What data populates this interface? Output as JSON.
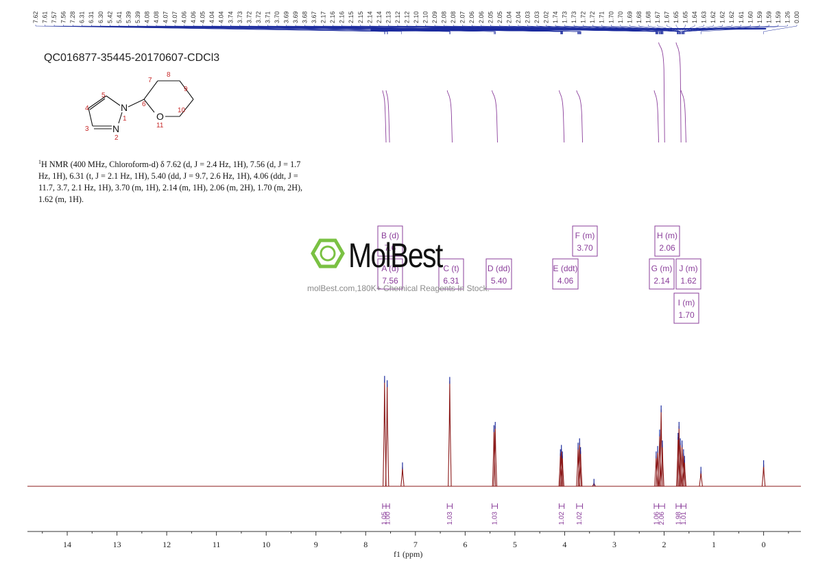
{
  "sample_id": "QC016877-35445-20170607-CDCl3",
  "description": {
    "nucleus_sup": "1",
    "text": "H NMR (400 MHz, Chloroform-d) δ 7.62 (d, J = 2.4 Hz, 1H), 7.56 (d, J = 1.7 Hz, 1H), 6.31 (t, J = 2.1 Hz, 1H), 5.40 (dd, J = 9.7, 2.6 Hz, 1H), 4.06 (ddt, J = 11.7, 3.7, 2.1 Hz, 1H), 3.70 (m, 1H), 2.14 (m, 1H), 2.06 (m, 2H), 1.70 (m, 2H), 1.62 (m, 1H)."
  },
  "structure": {
    "atom_labels": [
      "N",
      "N",
      "O"
    ],
    "numbers": [
      "1",
      "2",
      "3",
      "4",
      "5",
      "6",
      "7",
      "8",
      "9",
      "10",
      "11"
    ]
  },
  "watermark": {
    "brand": "MolBest",
    "tagline": "molBest.com,180K+ Chemical Reagents In Stock."
  },
  "colors": {
    "spectrum": "#8b1a1a",
    "peak_top": "#1c2c9e",
    "annotation": "#8a3d9a",
    "axis": "#333333",
    "brand_green": "#7ac143"
  },
  "chart_data": {
    "type": "line",
    "xlabel": "f1 (ppm)",
    "xlim": [
      14.8,
      -0.75
    ],
    "x_reversed": true,
    "x_ticks": [
      "14",
      "13",
      "12",
      "11",
      "10",
      "9",
      "8",
      "7",
      "6",
      "5",
      "4",
      "3",
      "2",
      "1",
      "0"
    ],
    "peak_list": [
      "7.62",
      "7.61",
      "7.57",
      "7.56",
      "7.28",
      "6.31",
      "6.31",
      "6.30",
      "5.42",
      "5.41",
      "5.39",
      "5.39",
      "4.08",
      "4.08",
      "4.07",
      "4.07",
      "4.06",
      "4.06",
      "4.05",
      "4.04",
      "4.04",
      "3.74",
      "3.73",
      "3.72",
      "3.72",
      "3.71",
      "3.70",
      "3.69",
      "3.69",
      "3.68",
      "3.67",
      "2.17",
      "2.16",
      "2.16",
      "2.15",
      "2.15",
      "2.14",
      "2.14",
      "2.13",
      "2.12",
      "2.12",
      "2.10",
      "2.10",
      "2.09",
      "2.08",
      "2.08",
      "2.07",
      "2.06",
      "2.06",
      "2.05",
      "2.05",
      "2.04",
      "2.04",
      "2.03",
      "2.03",
      "2.02",
      "1.74",
      "1.73",
      "1.73",
      "1.72",
      "1.72",
      "1.71",
      "1.70",
      "1.70",
      "1.69",
      "1.68",
      "1.68",
      "1.67",
      "1.67",
      "1.65",
      "1.65",
      "1.64",
      "1.63",
      "1.62",
      "1.62",
      "1.62",
      "1.61",
      "1.60",
      "1.59",
      "1.59",
      "1.59",
      "1.26",
      "0.00"
    ],
    "peaks": [
      {
        "ppm": 7.62,
        "h": 0.97
      },
      {
        "ppm": 7.568,
        "h": 0.93
      },
      {
        "ppm": 7.26,
        "h": 0.18
      },
      {
        "ppm": 6.31,
        "h": 0.96
      },
      {
        "ppm": 5.42,
        "h": 0.52
      },
      {
        "ppm": 5.395,
        "h": 0.55
      },
      {
        "ppm": 4.085,
        "h": 0.3
      },
      {
        "ppm": 4.065,
        "h": 0.34
      },
      {
        "ppm": 4.045,
        "h": 0.28
      },
      {
        "ppm": 3.73,
        "h": 0.36
      },
      {
        "ppm": 3.7,
        "h": 0.4
      },
      {
        "ppm": 3.68,
        "h": 0.32
      },
      {
        "ppm": 3.41,
        "h": 0.03
      },
      {
        "ppm": 2.16,
        "h": 0.28
      },
      {
        "ppm": 2.13,
        "h": 0.33
      },
      {
        "ppm": 2.09,
        "h": 0.48
      },
      {
        "ppm": 2.06,
        "h": 0.7
      },
      {
        "ppm": 2.035,
        "h": 0.38
      },
      {
        "ppm": 1.72,
        "h": 0.45
      },
      {
        "ppm": 1.7,
        "h": 0.55
      },
      {
        "ppm": 1.675,
        "h": 0.4
      },
      {
        "ppm": 1.64,
        "h": 0.38
      },
      {
        "ppm": 1.61,
        "h": 0.3
      },
      {
        "ppm": 1.59,
        "h": 0.24
      },
      {
        "ppm": 1.26,
        "h": 0.14
      },
      {
        "ppm": 0.0,
        "h": 0.2
      }
    ],
    "multiplets": [
      {
        "name": "B (d)",
        "shift": "7.6",
        "ppm": 7.62
      },
      {
        "name": "A (d)",
        "shift": "7.56",
        "ppm": 7.56
      },
      {
        "name": "C (t)",
        "shift": "6.31",
        "ppm": 6.31
      },
      {
        "name": "D (dd)",
        "shift": "5.40",
        "ppm": 5.4
      },
      {
        "name": "E (ddt)",
        "shift": "4.06",
        "ppm": 4.06
      },
      {
        "name": "F (m)",
        "shift": "3.70",
        "ppm": 3.7
      },
      {
        "name": "H (m)",
        "shift": "2.06",
        "ppm": 2.06
      },
      {
        "name": "G (m)",
        "shift": "2.14",
        "ppm": 2.14
      },
      {
        "name": "J (m)",
        "shift": "1.62",
        "ppm": 1.62
      },
      {
        "name": "I (m)",
        "shift": "1.70",
        "ppm": 1.7
      }
    ],
    "integrals": [
      {
        "value": "1.05",
        "from": 7.66,
        "to": 7.59
      },
      {
        "value": "1.00",
        "from": 7.59,
        "to": 7.52
      },
      {
        "value": "1.03",
        "from": 6.36,
        "to": 6.26
      },
      {
        "value": "1.03",
        "from": 5.46,
        "to": 5.35
      },
      {
        "value": "1.02",
        "from": 4.11,
        "to": 4.01
      },
      {
        "value": "1.02",
        "from": 3.76,
        "to": 3.64
      },
      {
        "value": "1.06",
        "from": 2.2,
        "to": 2.11
      },
      {
        "value": "2.06",
        "from": 2.11,
        "to": 1.99
      },
      {
        "value": "1.98",
        "from": 1.76,
        "to": 1.66
      },
      {
        "value": "1.01",
        "from": 1.66,
        "to": 1.56
      }
    ]
  }
}
